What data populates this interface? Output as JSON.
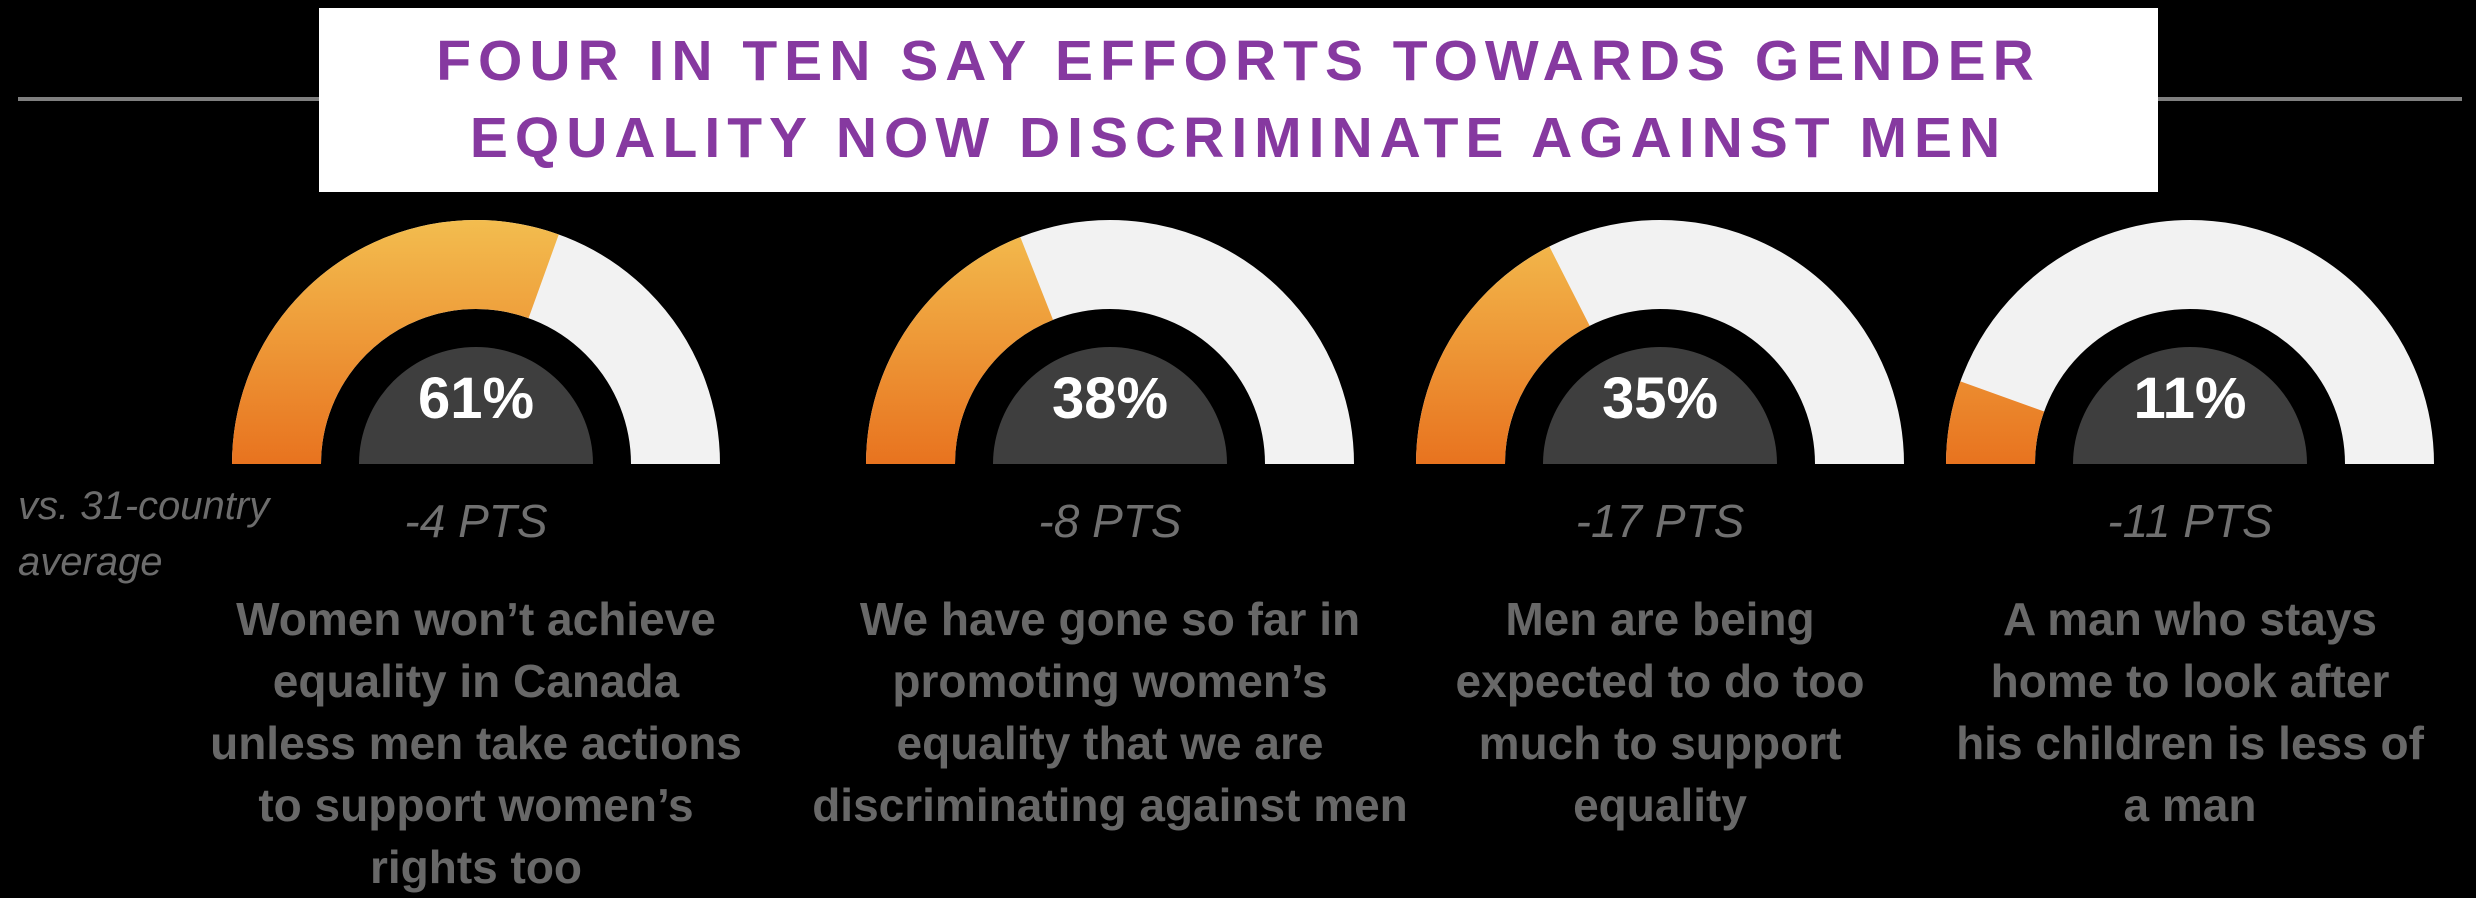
{
  "title": {
    "text": "FOUR IN TEN SAY EFFORTS TOWARDS GENDER\nEQUALITY NOW DISCRIMINATE AGAINST MEN"
  },
  "comparison_note": "vs. 31-country\naverage",
  "gauges": [
    {
      "value_pct": 61,
      "value_label": "61%",
      "diff_label": "-4 PTS",
      "statement": "Women won’t achieve\nequality in Canada\nunless men take actions\nto support women’s\nrights too"
    },
    {
      "value_pct": 38,
      "value_label": "38%",
      "diff_label": "-8 PTS",
      "statement": "We have gone so far in\npromoting women’s\nequality that we are\ndiscriminating against men"
    },
    {
      "value_pct": 35,
      "value_label": "35%",
      "diff_label": "-17 PTS",
      "statement": "Men are being\nexpected to do too\nmuch to support\nequality"
    },
    {
      "value_pct": 11,
      "value_label": "11%",
      "diff_label": "-11 PTS",
      "statement": "A man who stays\nhome to look after\nhis children is less of\na man"
    }
  ],
  "colors": {
    "background": "#000000",
    "banner_bg": "#FFFFFF",
    "title_purple": "#8639A0",
    "divider_gray": "#7F7F7F",
    "gauge_track": "#F2F2F2",
    "gauge_fill_top": "#F3BD4F",
    "gauge_fill_bottom": "#E8731F",
    "inner_semicircle": "#3E3E3E",
    "pct_text": "#FFFFFF",
    "pts_text": "#707070",
    "statement_text": "#686868"
  },
  "chart_data": {
    "type": "gauge",
    "title": "Four in ten say efforts towards gender equality now discriminate against men",
    "unit": "% agree",
    "gauge_range": [
      0,
      100
    ],
    "categories": [
      "Women won’t achieve equality in Canada unless men take actions to support women’s rights too",
      "We have gone so far in promoting women’s equality that we are discriminating against men",
      "Men are being expected to do too much to support equality",
      "A man who stays home to look after his children is less of a man"
    ],
    "values": [
      61,
      38,
      35,
      11
    ],
    "diff_vs_31_country_average_pts": [
      -4,
      -8,
      -17,
      -11
    ],
    "comparison_note": "vs. 31-country average"
  }
}
